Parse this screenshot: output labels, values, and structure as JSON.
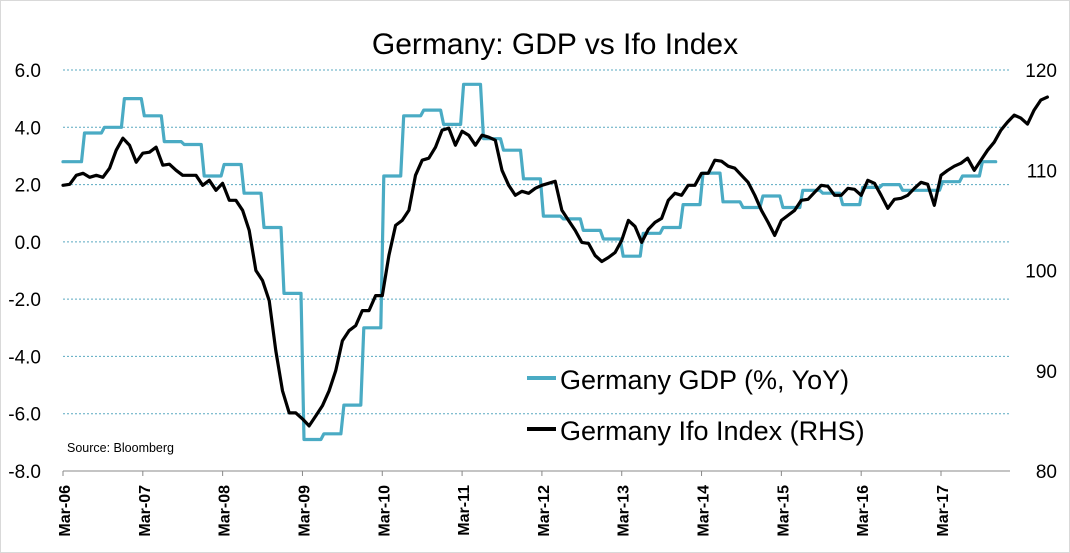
{
  "chart_data": {
    "type": "line",
    "title": "Germany: GDP vs Ifo Index",
    "source": "Source:  Bloomberg",
    "x_tick_labels": [
      "Mar-06",
      "Mar-07",
      "Mar-08",
      "Mar-09",
      "Mar-10",
      "Mar-11",
      "Mar-12",
      "Mar-13",
      "Mar-14",
      "Mar-15",
      "Mar-16",
      "Mar-17"
    ],
    "x_range": [
      "2006-03",
      "2017-12"
    ],
    "y_left": {
      "ticks": [
        "6.0",
        "4.0",
        "2.0",
        "0.0",
        "-2.0",
        "-4.0",
        "-6.0",
        "-8.0"
      ],
      "min": -8,
      "max": 6
    },
    "y_right": {
      "ticks": [
        "120",
        "110",
        "100",
        "90",
        "80"
      ],
      "min": 80,
      "max": 120
    },
    "grid": "horizontal, dotted",
    "legend_position": "bottom-right, inside plot",
    "colors": {
      "gdp": "#4aabc4",
      "ifo": "#000000",
      "grid": "#5aa9c1",
      "axis": "#888888"
    },
    "series": [
      {
        "name": "Germany GDP (%, YoY)",
        "axis": "left",
        "step": true,
        "points": [
          [
            "2006-03",
            2.8
          ],
          [
            "2006-06",
            3.8
          ],
          [
            "2006-09",
            4.0
          ],
          [
            "2006-12",
            5.0
          ],
          [
            "2007-03",
            4.4
          ],
          [
            "2007-06",
            3.5
          ],
          [
            "2007-09",
            3.4
          ],
          [
            "2007-12",
            2.3
          ],
          [
            "2008-03",
            2.7
          ],
          [
            "2008-06",
            1.7
          ],
          [
            "2008-09",
            0.5
          ],
          [
            "2008-12",
            -1.8
          ],
          [
            "2009-03",
            -6.9
          ],
          [
            "2009-06",
            -6.7
          ],
          [
            "2009-09",
            -5.7
          ],
          [
            "2009-12",
            -3.0
          ],
          [
            "2010-03",
            2.3
          ],
          [
            "2010-06",
            4.4
          ],
          [
            "2010-09",
            4.6
          ],
          [
            "2010-12",
            4.1
          ],
          [
            "2011-03",
            5.5
          ],
          [
            "2011-06",
            3.6
          ],
          [
            "2011-09",
            3.2
          ],
          [
            "2011-12",
            2.2
          ],
          [
            "2012-03",
            0.9
          ],
          [
            "2012-06",
            0.8
          ],
          [
            "2012-09",
            0.4
          ],
          [
            "2012-12",
            0.1
          ],
          [
            "2013-03",
            -0.5
          ],
          [
            "2013-06",
            0.3
          ],
          [
            "2013-09",
            0.5
          ],
          [
            "2013-12",
            1.3
          ],
          [
            "2014-03",
            2.4
          ],
          [
            "2014-06",
            1.4
          ],
          [
            "2014-09",
            1.2
          ],
          [
            "2014-12",
            1.6
          ],
          [
            "2015-03",
            1.2
          ],
          [
            "2015-06",
            1.8
          ],
          [
            "2015-09",
            1.7
          ],
          [
            "2015-12",
            1.3
          ],
          [
            "2016-03",
            1.9
          ],
          [
            "2016-06",
            2.0
          ],
          [
            "2016-09",
            1.8
          ],
          [
            "2016-12",
            1.8
          ],
          [
            "2017-03",
            2.1
          ],
          [
            "2017-06",
            2.3
          ],
          [
            "2017-09",
            2.8
          ],
          [
            "2017-11",
            2.8
          ]
        ]
      },
      {
        "name": "Germany Ifo Index (RHS)",
        "axis": "right",
        "step": false,
        "points": [
          [
            "2006-03",
            108.5
          ],
          [
            "2006-04",
            108.6
          ],
          [
            "2006-05",
            109.5
          ],
          [
            "2006-06",
            109.7
          ],
          [
            "2006-07",
            109.3
          ],
          [
            "2006-08",
            109.5
          ],
          [
            "2006-09",
            109.3
          ],
          [
            "2006-10",
            110.2
          ],
          [
            "2006-11",
            112.0
          ],
          [
            "2006-12",
            113.2
          ],
          [
            "2007-01",
            112.5
          ],
          [
            "2007-02",
            110.8
          ],
          [
            "2007-03",
            111.7
          ],
          [
            "2007-04",
            111.8
          ],
          [
            "2007-05",
            112.3
          ],
          [
            "2007-06",
            110.5
          ],
          [
            "2007-07",
            110.6
          ],
          [
            "2007-08",
            110.0
          ],
          [
            "2007-09",
            109.5
          ],
          [
            "2007-10",
            109.5
          ],
          [
            "2007-11",
            109.5
          ],
          [
            "2007-12",
            108.5
          ],
          [
            "2008-01",
            109.0
          ],
          [
            "2008-02",
            108.0
          ],
          [
            "2008-03",
            108.7
          ],
          [
            "2008-04",
            107.0
          ],
          [
            "2008-05",
            107.0
          ],
          [
            "2008-06",
            106.0
          ],
          [
            "2008-07",
            104.0
          ],
          [
            "2008-08",
            100.0
          ],
          [
            "2008-09",
            99.0
          ],
          [
            "2008-10",
            97.0
          ],
          [
            "2008-11",
            92.0
          ],
          [
            "2008-12",
            88.0
          ],
          [
            "2009-01",
            85.8
          ],
          [
            "2009-02",
            85.8
          ],
          [
            "2009-03",
            85.2
          ],
          [
            "2009-04",
            84.5
          ],
          [
            "2009-05",
            85.5
          ],
          [
            "2009-06",
            86.5
          ],
          [
            "2009-07",
            88.0
          ],
          [
            "2009-08",
            90.0
          ],
          [
            "2009-09",
            93.0
          ],
          [
            "2009-10",
            94.0
          ],
          [
            "2009-11",
            94.5
          ],
          [
            "2009-12",
            96.0
          ],
          [
            "2010-01",
            96.0
          ],
          [
            "2010-02",
            97.5
          ],
          [
            "2010-03",
            97.5
          ],
          [
            "2010-04",
            101.5
          ],
          [
            "2010-05",
            104.5
          ],
          [
            "2010-06",
            105.0
          ],
          [
            "2010-07",
            106.0
          ],
          [
            "2010-08",
            109.5
          ],
          [
            "2010-09",
            111.0
          ],
          [
            "2010-10",
            111.2
          ],
          [
            "2010-11",
            112.3
          ],
          [
            "2010-12",
            114.0
          ],
          [
            "2011-01",
            114.2
          ],
          [
            "2011-02",
            112.5
          ],
          [
            "2011-03",
            113.9
          ],
          [
            "2011-04",
            113.5
          ],
          [
            "2011-05",
            112.5
          ],
          [
            "2011-06",
            113.5
          ],
          [
            "2011-07",
            113.3
          ],
          [
            "2011-08",
            113.0
          ],
          [
            "2011-09",
            110.0
          ],
          [
            "2011-10",
            108.5
          ],
          [
            "2011-11",
            107.5
          ],
          [
            "2011-12",
            107.9
          ],
          [
            "2012-01",
            107.7
          ],
          [
            "2012-02",
            108.2
          ],
          [
            "2012-03",
            108.5
          ],
          [
            "2012-04",
            108.7
          ],
          [
            "2012-05",
            108.9
          ],
          [
            "2012-06",
            106.0
          ],
          [
            "2012-07",
            105.0
          ],
          [
            "2012-08",
            104.0
          ],
          [
            "2012-09",
            102.8
          ],
          [
            "2012-10",
            102.7
          ],
          [
            "2012-11",
            101.5
          ],
          [
            "2012-12",
            100.9
          ],
          [
            "2013-01",
            101.3
          ],
          [
            "2013-02",
            101.8
          ],
          [
            "2013-03",
            103.0
          ],
          [
            "2013-04",
            105.0
          ],
          [
            "2013-05",
            104.4
          ],
          [
            "2013-06",
            102.8
          ],
          [
            "2013-07",
            104.1
          ],
          [
            "2013-08",
            104.8
          ],
          [
            "2013-09",
            105.2
          ],
          [
            "2013-10",
            107.0
          ],
          [
            "2013-11",
            107.7
          ],
          [
            "2013-12",
            107.5
          ],
          [
            "2014-01",
            108.5
          ],
          [
            "2014-02",
            108.5
          ],
          [
            "2014-03",
            109.7
          ],
          [
            "2014-04",
            109.7
          ],
          [
            "2014-05",
            111.0
          ],
          [
            "2014-06",
            110.9
          ],
          [
            "2014-07",
            110.4
          ],
          [
            "2014-08",
            110.2
          ],
          [
            "2014-09",
            109.5
          ],
          [
            "2014-10",
            108.8
          ],
          [
            "2014-11",
            107.5
          ],
          [
            "2014-12",
            106.0
          ],
          [
            "2015-01",
            104.8
          ],
          [
            "2015-02",
            103.5
          ],
          [
            "2015-03",
            105.0
          ],
          [
            "2015-04",
            105.5
          ],
          [
            "2015-05",
            106.0
          ],
          [
            "2015-06",
            107.0
          ],
          [
            "2015-07",
            107.1
          ],
          [
            "2015-08",
            107.8
          ],
          [
            "2015-09",
            108.5
          ],
          [
            "2015-10",
            108.4
          ],
          [
            "2015-11",
            107.5
          ],
          [
            "2015-12",
            107.5
          ],
          [
            "2016-01",
            108.2
          ],
          [
            "2016-02",
            108.1
          ],
          [
            "2016-03",
            107.5
          ],
          [
            "2016-04",
            109.0
          ],
          [
            "2016-05",
            108.7
          ],
          [
            "2016-06",
            107.5
          ],
          [
            "2016-07",
            106.2
          ],
          [
            "2016-08",
            107.1
          ],
          [
            "2016-09",
            107.2
          ],
          [
            "2016-10",
            107.5
          ],
          [
            "2016-11",
            108.2
          ],
          [
            "2016-12",
            108.8
          ],
          [
            "2017-01",
            108.6
          ],
          [
            "2017-02",
            106.5
          ],
          [
            "2017-03",
            109.5
          ],
          [
            "2017-04",
            110.0
          ],
          [
            "2017-05",
            110.4
          ],
          [
            "2017-06",
            110.7
          ],
          [
            "2017-07",
            111.2
          ],
          [
            "2017-08",
            110.0
          ],
          [
            "2017-09",
            111.0
          ],
          [
            "2017-10",
            112.0
          ],
          [
            "2017-11",
            112.8
          ],
          [
            "2017-12",
            114.0
          ],
          [
            "2018-01",
            114.8
          ],
          [
            "2018-02",
            115.5
          ],
          [
            "2018-03",
            115.2
          ],
          [
            "2018-04",
            114.6
          ],
          [
            "2018-05",
            116.0
          ],
          [
            "2018-06",
            117.0
          ],
          [
            "2018-07",
            117.3
          ]
        ]
      }
    ]
  }
}
